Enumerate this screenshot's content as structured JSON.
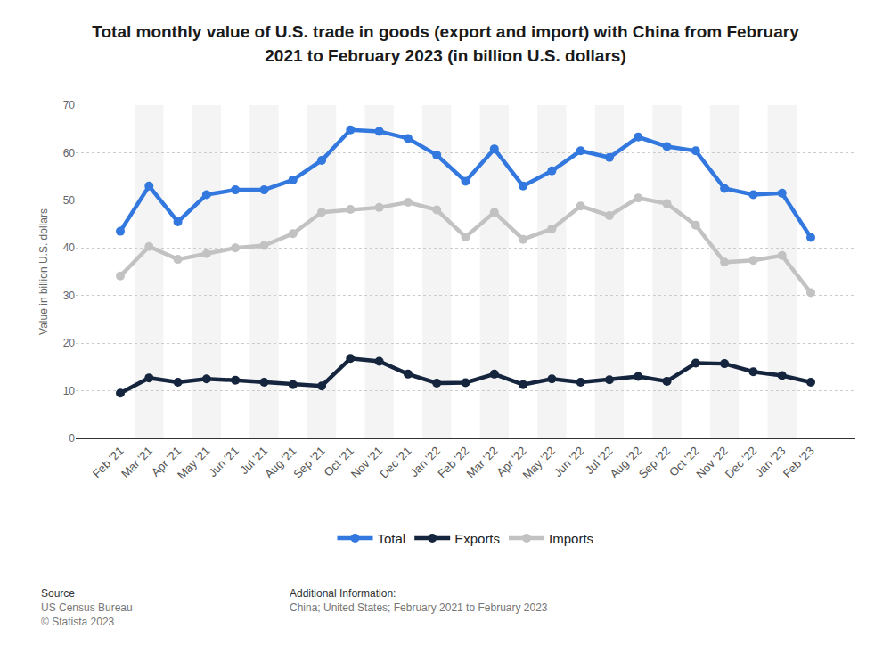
{
  "chart_data": {
    "type": "line",
    "title": "Total monthly value of U.S. trade in goods (export and import) with China from February 2021 to February 2023 (in billion U.S. dollars)",
    "y_label": "Value in billion U.S. dollars",
    "categories": [
      "Feb '21",
      "Mar '21",
      "Apr '21",
      "May '21",
      "Jun '21",
      "Jul '21",
      "Aug '21",
      "Sep '21",
      "Oct '21",
      "Nov '21",
      "Dec '21",
      "Jan '22",
      "Feb '22",
      "Mar '22",
      "Apr '22",
      "May '22",
      "Jun '22",
      "Jul '22",
      "Aug '22",
      "Sep '22",
      "Oct '22",
      "Nov '22",
      "Dec '22",
      "Jan '23",
      "Feb '23"
    ],
    "series": [
      {
        "name": "Total",
        "color": "#3278de",
        "values": [
          43.5,
          53,
          45.5,
          51.2,
          52.2,
          52.2,
          54.3,
          58.4,
          64.8,
          64.5,
          63,
          59.5,
          54,
          60.8,
          53,
          56.2,
          60.4,
          59,
          63.3,
          61.3,
          60.4,
          52.5,
          51.2,
          51.5,
          42.2
        ]
      },
      {
        "name": "Exports",
        "color": "#14253d",
        "values": [
          9.5,
          12.7,
          11.8,
          12.5,
          12.2,
          11.8,
          11.3,
          11,
          16.8,
          16.2,
          13.5,
          11.6,
          11.7,
          13.5,
          11.3,
          12.5,
          11.8,
          12.3,
          13,
          12,
          15.8,
          15.7,
          14,
          13.2,
          11.8
        ]
      },
      {
        "name": "Imports",
        "color": "#c2c2c2",
        "values": [
          34.1,
          40.3,
          37.6,
          38.8,
          40,
          40.5,
          43,
          47.5,
          48.1,
          48.5,
          49.6,
          48,
          42.3,
          47.5,
          41.8,
          44,
          48.8,
          46.8,
          50.5,
          49.3,
          44.8,
          37,
          37.4,
          38.4,
          30.6
        ]
      }
    ],
    "ylim": [
      0,
      70
    ],
    "yticks": [
      0,
      10,
      20,
      30,
      40,
      50,
      60,
      70
    ],
    "grid": true,
    "legend": "bottom",
    "marker": "circle",
    "line_style": "solid",
    "annotations": [
      "Source",
      "US Census Bureau",
      "© Statista 2023",
      "Additional Information:",
      "China; United States; February 2021 to February 2023"
    ]
  }
}
